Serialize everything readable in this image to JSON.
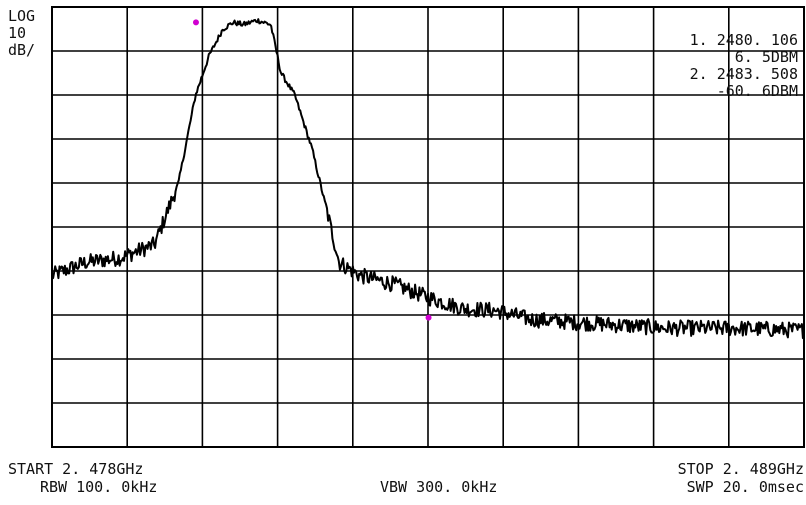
{
  "scale": {
    "mode": "LOG",
    "div_value": "10",
    "unit": "dB/"
  },
  "markers": {
    "marker1_freq": "1. 2480. 106",
    "marker1_level": "6. 5DBM",
    "marker2_freq": "2. 2483. 508",
    "marker2_level": "-60. 6DBM"
  },
  "footer": {
    "start": "START 2. 478GHz",
    "rbw": "RBW 100. 0kHz",
    "vbw": "VBW 300. 0kHz",
    "stop": "STOP 2. 489GHz",
    "swp": "SWP 20. 0msec"
  },
  "colors": {
    "trace": "#000000",
    "grid": "#000000",
    "marker": "#d000d0",
    "background": "#ffffff"
  },
  "chart_data": {
    "type": "line",
    "title": "",
    "xlabel": "",
    "ylabel": "",
    "x_unit": "GHz",
    "y_unit": "dBm",
    "xlim": [
      2.478,
      2.489
    ],
    "ylim": [
      -90,
      10
    ],
    "grid": true,
    "grid_divisions": {
      "x": 10,
      "y": 10
    },
    "series": [
      {
        "x": [
          2.478,
          2.4785,
          2.479,
          2.4795,
          2.47985,
          2.4801,
          2.4803,
          2.4805,
          2.48065,
          2.4808,
          2.481,
          2.4812,
          2.48135,
          2.48155,
          2.4818,
          2.482,
          2.4822,
          2.4825,
          2.483,
          2.4835,
          2.484,
          2.4845,
          2.485,
          2.486,
          2.487,
          2.488,
          2.489
        ],
        "y": [
          -51,
          -48,
          -47,
          -44,
          -30,
          -10,
          -1,
          5,
          6.5,
          6,
          7,
          6,
          -5,
          -10,
          -22,
          -35,
          -48,
          -51,
          -53,
          -56,
          -58.5,
          -59,
          -61,
          -62,
          -63,
          -63,
          -63.5
        ]
      }
    ],
    "markers": [
      {
        "id": 1,
        "x": 2.480106,
        "y": 6.5
      },
      {
        "id": 2,
        "x": 2.483508,
        "y": -60.6
      }
    ]
  }
}
